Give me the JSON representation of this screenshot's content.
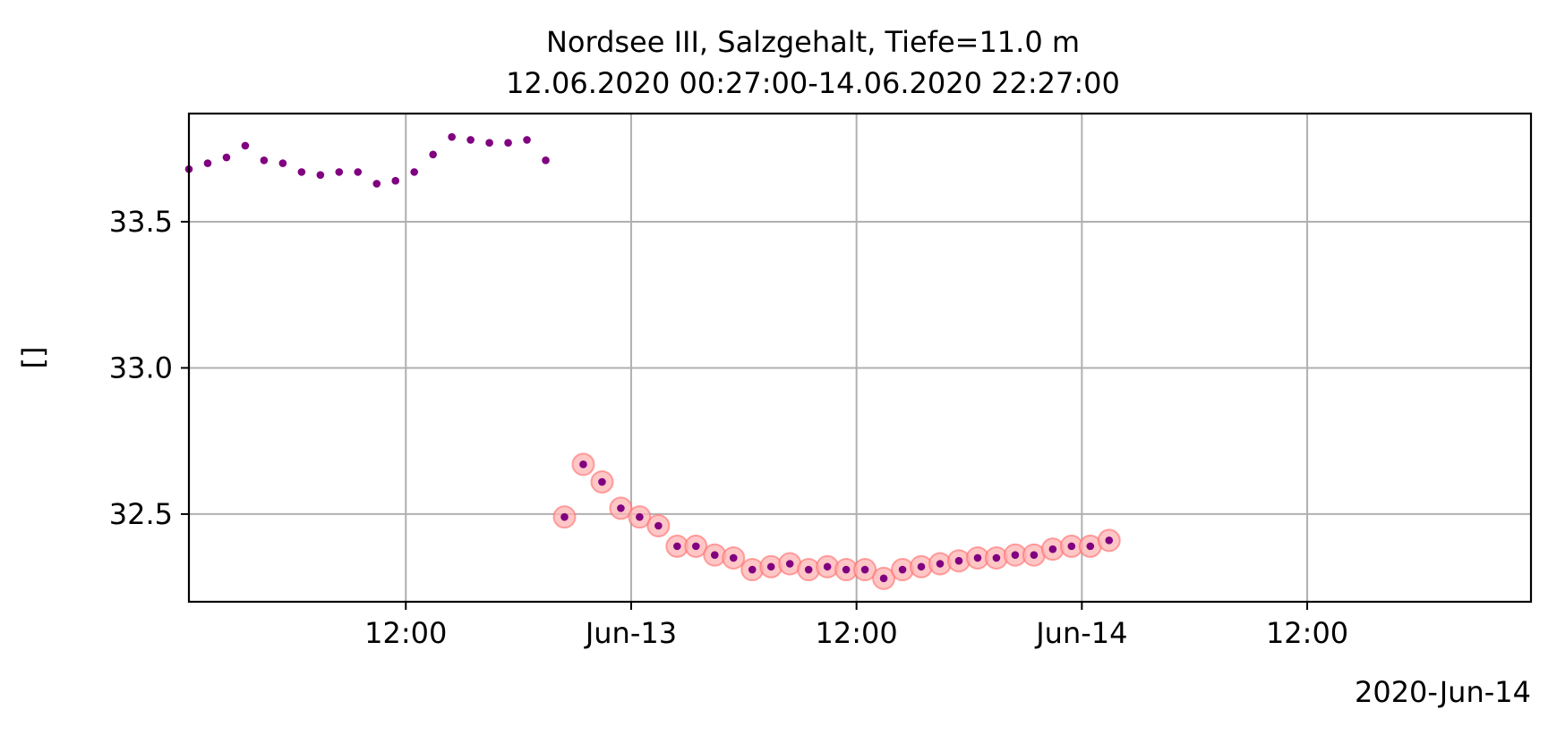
{
  "chart_data": {
    "type": "scatter",
    "title_line1": "Nordsee III, Salzgehalt, Tiefe=11.0 m",
    "title_line2": "12.06.2020 00:27:00-14.06.2020 22:27:00",
    "ylabel": "[]",
    "x_offset_label": "2020-Jun-14",
    "xlim": [
      "2020-06-12 00:27",
      "2020-06-14 23:55"
    ],
    "ylim": [
      32.2,
      33.87
    ],
    "grid": true,
    "x_ticks": [
      {
        "t": "2020-06-12 12:00",
        "label": "12:00"
      },
      {
        "t": "2020-06-13 00:00",
        "label": "Jun-13"
      },
      {
        "t": "2020-06-13 12:00",
        "label": "12:00"
      },
      {
        "t": "2020-06-14 00:00",
        "label": "Jun-14"
      },
      {
        "t": "2020-06-14 12:00",
        "label": "12:00"
      }
    ],
    "y_ticks": [
      {
        "v": 32.5,
        "label": "32.5"
      },
      {
        "v": 33.0,
        "label": "33.0"
      },
      {
        "v": 33.5,
        "label": "33.5"
      }
    ],
    "colors": {
      "point": "#800080",
      "flag_fill": "#ffb3b3",
      "flag_edge": "#ff6b6b"
    },
    "points": [
      {
        "t": "2020-06-12 00:27",
        "y": 33.68,
        "flag": false
      },
      {
        "t": "2020-06-12 01:27",
        "y": 33.7,
        "flag": false
      },
      {
        "t": "2020-06-12 02:27",
        "y": 33.72,
        "flag": false
      },
      {
        "t": "2020-06-12 03:27",
        "y": 33.76,
        "flag": false
      },
      {
        "t": "2020-06-12 04:27",
        "y": 33.71,
        "flag": false
      },
      {
        "t": "2020-06-12 05:27",
        "y": 33.7,
        "flag": false
      },
      {
        "t": "2020-06-12 06:27",
        "y": 33.67,
        "flag": false
      },
      {
        "t": "2020-06-12 07:27",
        "y": 33.66,
        "flag": false
      },
      {
        "t": "2020-06-12 08:27",
        "y": 33.67,
        "flag": false
      },
      {
        "t": "2020-06-12 09:27",
        "y": 33.67,
        "flag": false
      },
      {
        "t": "2020-06-12 10:27",
        "y": 33.63,
        "flag": false
      },
      {
        "t": "2020-06-12 11:27",
        "y": 33.64,
        "flag": false
      },
      {
        "t": "2020-06-12 12:27",
        "y": 33.67,
        "flag": false
      },
      {
        "t": "2020-06-12 13:27",
        "y": 33.73,
        "flag": false
      },
      {
        "t": "2020-06-12 14:27",
        "y": 33.79,
        "flag": false
      },
      {
        "t": "2020-06-12 15:27",
        "y": 33.78,
        "flag": false
      },
      {
        "t": "2020-06-12 16:27",
        "y": 33.77,
        "flag": false
      },
      {
        "t": "2020-06-12 17:27",
        "y": 33.77,
        "flag": false
      },
      {
        "t": "2020-06-12 18:27",
        "y": 33.78,
        "flag": false
      },
      {
        "t": "2020-06-12 19:27",
        "y": 33.71,
        "flag": false
      },
      {
        "t": "2020-06-12 20:27",
        "y": 32.49,
        "flag": true
      },
      {
        "t": "2020-06-12 21:27",
        "y": 32.67,
        "flag": true
      },
      {
        "t": "2020-06-12 22:27",
        "y": 32.61,
        "flag": true
      },
      {
        "t": "2020-06-12 23:27",
        "y": 32.52,
        "flag": true
      },
      {
        "t": "2020-06-13 00:27",
        "y": 32.49,
        "flag": true
      },
      {
        "t": "2020-06-13 01:27",
        "y": 32.46,
        "flag": true
      },
      {
        "t": "2020-06-13 02:27",
        "y": 32.39,
        "flag": true
      },
      {
        "t": "2020-06-13 03:27",
        "y": 32.39,
        "flag": true
      },
      {
        "t": "2020-06-13 04:27",
        "y": 32.36,
        "flag": true
      },
      {
        "t": "2020-06-13 05:27",
        "y": 32.35,
        "flag": true
      },
      {
        "t": "2020-06-13 06:27",
        "y": 32.31,
        "flag": true
      },
      {
        "t": "2020-06-13 07:27",
        "y": 32.32,
        "flag": true
      },
      {
        "t": "2020-06-13 08:27",
        "y": 32.33,
        "flag": true
      },
      {
        "t": "2020-06-13 09:27",
        "y": 32.31,
        "flag": true
      },
      {
        "t": "2020-06-13 10:27",
        "y": 32.32,
        "flag": true
      },
      {
        "t": "2020-06-13 11:27",
        "y": 32.31,
        "flag": true
      },
      {
        "t": "2020-06-13 12:27",
        "y": 32.31,
        "flag": true
      },
      {
        "t": "2020-06-13 13:27",
        "y": 32.28,
        "flag": true
      },
      {
        "t": "2020-06-13 14:27",
        "y": 32.31,
        "flag": true
      },
      {
        "t": "2020-06-13 15:27",
        "y": 32.32,
        "flag": true
      },
      {
        "t": "2020-06-13 16:27",
        "y": 32.33,
        "flag": true
      },
      {
        "t": "2020-06-13 17:27",
        "y": 32.34,
        "flag": true
      },
      {
        "t": "2020-06-13 18:27",
        "y": 32.35,
        "flag": true
      },
      {
        "t": "2020-06-13 19:27",
        "y": 32.35,
        "flag": true
      },
      {
        "t": "2020-06-13 20:27",
        "y": 32.36,
        "flag": true
      },
      {
        "t": "2020-06-13 21:27",
        "y": 32.36,
        "flag": true
      },
      {
        "t": "2020-06-13 22:27",
        "y": 32.38,
        "flag": true
      },
      {
        "t": "2020-06-13 23:27",
        "y": 32.39,
        "flag": true
      },
      {
        "t": "2020-06-14 00:27",
        "y": 32.39,
        "flag": true
      },
      {
        "t": "2020-06-14 01:27",
        "y": 32.41,
        "flag": true
      }
    ]
  }
}
